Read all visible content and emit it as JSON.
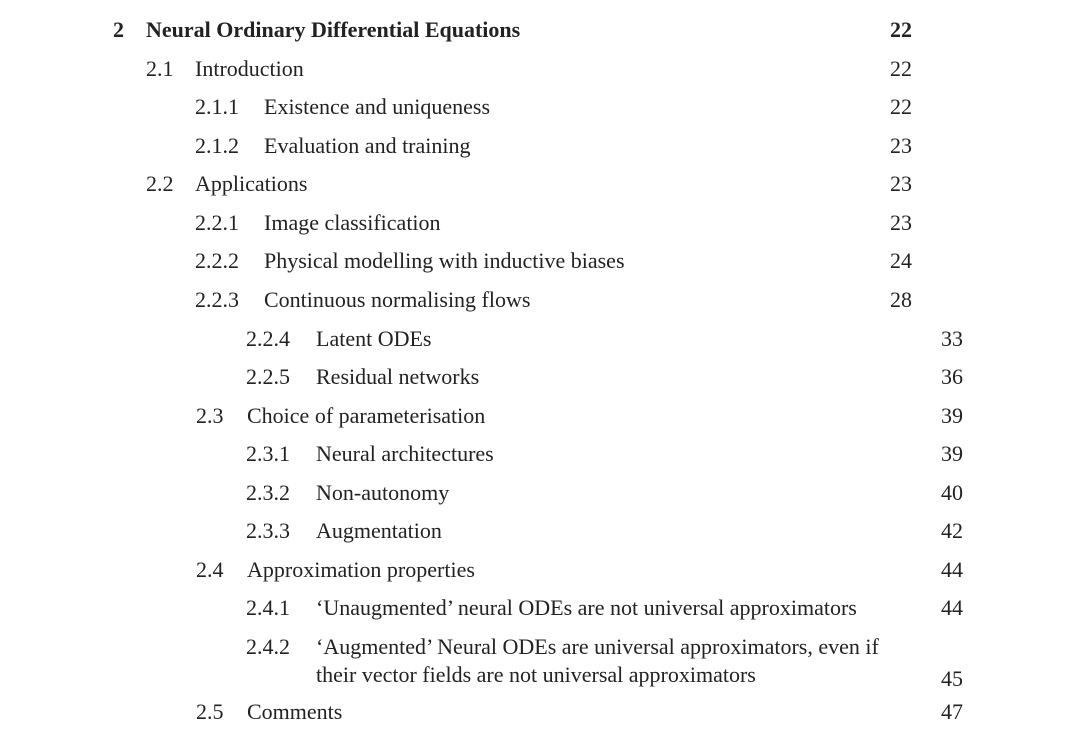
{
  "chapter": {
    "num": "2",
    "title": "Neural Ordinary Differential Equations",
    "page": "22"
  },
  "entries": [
    {
      "num": "2.1",
      "title": "Introduction",
      "page": "22"
    },
    {
      "num": "2.1.1",
      "title": "Existence and uniqueness",
      "page": "22"
    },
    {
      "num": "2.1.2",
      "title": "Evaluation and training",
      "page": "23"
    },
    {
      "num": "2.2",
      "title": "Applications",
      "page": "23"
    },
    {
      "num": "2.2.1",
      "title": "Image classification",
      "page": "23"
    },
    {
      "num": "2.2.2",
      "title": "Physical modelling with inductive biases",
      "page": "24"
    },
    {
      "num": "2.2.3",
      "title": "Continuous normalising flows",
      "page": "28"
    },
    {
      "num": "2.2.4",
      "title": "Latent ODEs",
      "page": "33"
    },
    {
      "num": "2.2.5",
      "title": "Residual networks",
      "page": "36"
    },
    {
      "num": "2.3",
      "title": "Choice of parameterisation",
      "page": "39"
    },
    {
      "num": "2.3.1",
      "title": "Neural architectures",
      "page": "39"
    },
    {
      "num": "2.3.2",
      "title": "Non-autonomy",
      "page": "40"
    },
    {
      "num": "2.3.3",
      "title": "Augmentation",
      "page": "42"
    },
    {
      "num": "2.4",
      "title": "Approximation properties",
      "page": "44"
    },
    {
      "num": "2.4.1",
      "title": "‘Unaugmented’ neural ODEs are not universal approximators",
      "page": "44"
    },
    {
      "num": "2.4.2",
      "title_lines": [
        "‘Augmented’ Neural ODEs are universal approximators, even if",
        "their vector fields are not universal approximators"
      ],
      "page": "45"
    },
    {
      "num": "2.5",
      "title": "Comments",
      "page": "47"
    }
  ]
}
